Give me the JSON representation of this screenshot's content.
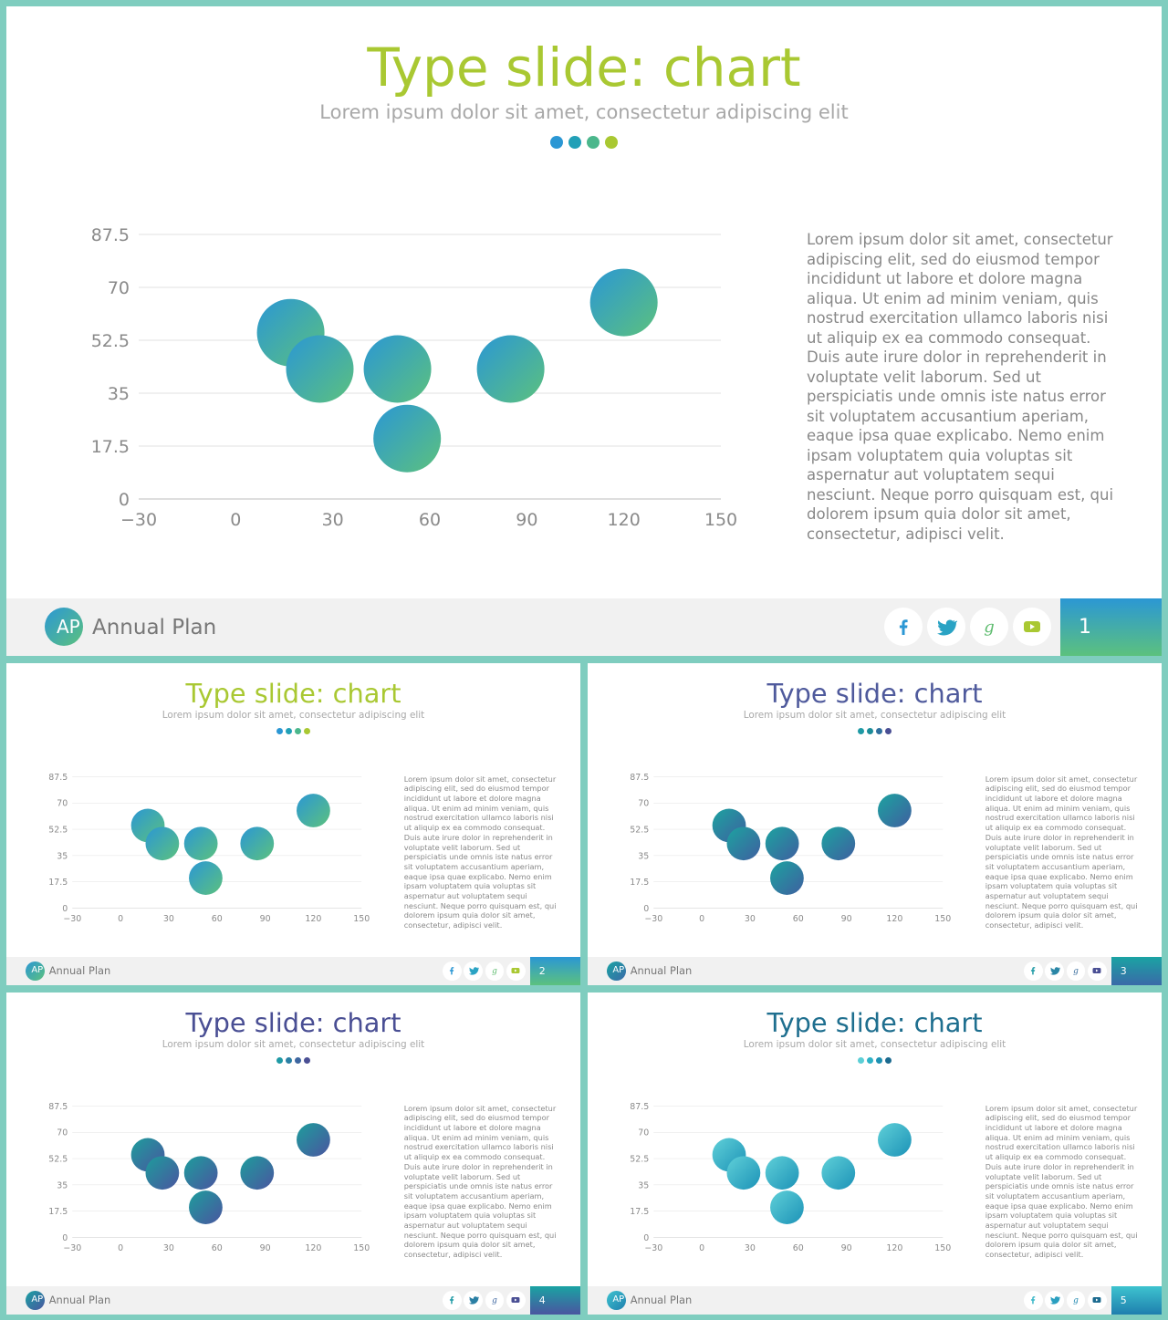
{
  "slides": [
    {
      "title": "Type slide: chart",
      "subtitle": "Lorem ipsum dolor sit amet, consectetur adipiscing elit",
      "body": "Lorem ipsum dolor sit amet, consectetur adipiscing elit, sed do eiusmod tempor incididunt ut labore et dolore magna aliqua. Ut enim ad minim veniam, quis nostrud exercitation ullamco laboris nisi ut aliquip ex ea commodo consequat. Duis aute irure dolor in reprehenderit in voluptate velit laborum. Sed ut perspiciatis unde omnis iste natus error sit voluptatem accusantium aperiam, eaque ipsa quae explicabo. Nemo enim ipsam voluptatem quia voluptas sit aspernatur aut voluptatem sequi nesciunt. Neque porro quisquam est, qui dolorem ipsum quia dolor sit amet, consectetur, adipisci velit.",
      "logo_initials": "AP",
      "brand": "Annual Plan",
      "page_number": "1",
      "title_color": "#a9c832",
      "dot_colors": [
        "#2b97d4",
        "#22a0b7",
        "#4bb78c",
        "#a9c832"
      ],
      "bubble_gradient": [
        "#2b97d4",
        "#5cc17e"
      ],
      "page_gradient": [
        "#2b97d4",
        "#5cc17e"
      ],
      "icon_colors": [
        "#2b97d4",
        "#2aa3c4",
        "#5ebc6f",
        "#a9c832"
      ],
      "social_icons": [
        "facebook-icon",
        "twitter-icon",
        "google-icon",
        "youtube-icon"
      ]
    },
    {
      "title": "Type slide: chart",
      "subtitle": "Lorem ipsum dolor sit amet, consectetur adipiscing elit",
      "body": "Lorem ipsum dolor sit amet, consectetur adipiscing elit, sed do eiusmod tempor incididunt ut labore et dolore magna aliqua. Ut enim ad minim veniam, quis nostrud exercitation ullamco laboris nisi ut aliquip ex ea commodo consequat. Duis aute irure dolor in reprehenderit in voluptate velit laborum. Sed ut perspiciatis unde omnis iste natus error sit voluptatem accusantium aperiam, eaque ipsa quae explicabo. Nemo enim ipsam voluptatem quia voluptas sit aspernatur aut voluptatem sequi nesciunt. Neque porro quisquam est, qui dolorem ipsum quia dolor sit amet, consectetur, adipisci velit.",
      "logo_initials": "AP",
      "brand": "Annual Plan",
      "page_number": "2",
      "title_color": "#a9c832",
      "dot_colors": [
        "#2b97d4",
        "#22a0b7",
        "#4bb78c",
        "#a9c832"
      ],
      "bubble_gradient": [
        "#2b97d4",
        "#5cc17e"
      ],
      "page_gradient": [
        "#2b97d4",
        "#5cc17e"
      ],
      "icon_colors": [
        "#2b97d4",
        "#2aa3c4",
        "#5ebc6f",
        "#a9c832"
      ],
      "social_icons": [
        "facebook-icon",
        "twitter-icon",
        "google-icon",
        "youtube-icon"
      ]
    },
    {
      "title": "Type slide: chart",
      "subtitle": "Lorem ipsum dolor sit amet, consectetur adipiscing elit",
      "body": "Lorem ipsum dolor sit amet, consectetur adipiscing elit, sed do eiusmod tempor incididunt ut labore et dolore magna aliqua. Ut enim ad minim veniam, quis nostrud exercitation ullamco laboris nisi ut aliquip ex ea commodo consequat. Duis aute irure dolor in reprehenderit in voluptate velit laborum. Sed ut perspiciatis unde omnis iste natus error sit voluptatem accusantium aperiam, eaque ipsa quae explicabo. Nemo enim ipsam voluptatem quia voluptas sit aspernatur aut voluptatem sequi nesciunt. Neque porro quisquam est, qui dolorem ipsum quia dolor sit amet, consectetur, adipisci velit.",
      "logo_initials": "AP",
      "brand": "Annual Plan",
      "page_number": "3",
      "title_color": "#4f5a9c",
      "dot_colors": [
        "#1f9aa5",
        "#1c8c99",
        "#2f6f9e",
        "#4a4f94"
      ],
      "bubble_gradient": [
        "#1ca3a0",
        "#3f5fa0"
      ],
      "page_gradient": [
        "#1aa3a3",
        "#3a6aa8"
      ],
      "icon_colors": [
        "#1f9aa5",
        "#2a86a6",
        "#3a6e9e",
        "#4a4f94"
      ],
      "social_icons": [
        "facebook-icon",
        "twitter-icon",
        "google-icon",
        "youtube-icon"
      ]
    },
    {
      "title": "Type slide: chart",
      "subtitle": "Lorem ipsum dolor sit amet, consectetur adipiscing elit",
      "body": "Lorem ipsum dolor sit amet, consectetur adipiscing elit, sed do eiusmod tempor incididunt ut labore et dolore magna aliqua. Ut enim ad minim veniam, quis nostrud exercitation ullamco laboris nisi ut aliquip ex ea commodo consequat. Duis aute irure dolor in reprehenderit in voluptate velit laborum. Sed ut perspiciatis unde omnis iste natus error sit voluptatem accusantium aperiam, eaque ipsa quae explicabo. Nemo enim ipsam voluptatem quia voluptas sit aspernatur aut voluptatem sequi nesciunt. Neque porro quisquam est, qui dolorem ipsum quia dolor sit amet, consectetur, adipisci velit.",
      "logo_initials": "AP",
      "brand": "Annual Plan",
      "page_number": "4",
      "title_color": "#4a4f94",
      "dot_colors": [
        "#1f9aa5",
        "#2a7fa4",
        "#3d66a0",
        "#4a4f94"
      ],
      "bubble_gradient": [
        "#1d9d9c",
        "#4a55a0"
      ],
      "page_gradient": [
        "#1aa3a3",
        "#4a55a0"
      ],
      "icon_colors": [
        "#1f9aa5",
        "#2a7fa4",
        "#3d66a0",
        "#4a4f94"
      ],
      "social_icons": [
        "facebook-icon",
        "twitter-icon",
        "google-icon",
        "youtube-icon"
      ]
    },
    {
      "title": "Type slide: chart",
      "subtitle": "Lorem ipsum dolor sit amet, consectetur adipiscing elit",
      "body": "Lorem ipsum dolor sit amet, consectetur adipiscing elit, sed do eiusmod tempor incididunt ut labore et dolore magna aliqua. Ut enim ad minim veniam, quis nostrud exercitation ullamco laboris nisi ut aliquip ex ea commodo consequat. Duis aute irure dolor in reprehenderit in voluptate velit laborum. Sed ut perspiciatis unde omnis iste natus error sit voluptatem accusantium aperiam, eaque ipsa quae explicabo. Nemo enim ipsam voluptatem quia voluptas sit aspernatur aut voluptatem sequi nesciunt. Neque porro quisquam est, qui dolorem ipsum quia dolor sit amet, consectetur, adipisci velit.",
      "logo_initials": "AP",
      "brand": "Annual Plan",
      "page_number": "5",
      "title_color": "#1f6f8f",
      "dot_colors": [
        "#5ccfd6",
        "#2eb2c6",
        "#1d90b2",
        "#1b6a8f"
      ],
      "bubble_gradient": [
        "#5fd0d8",
        "#1c92b7"
      ],
      "page_gradient": [
        "#3ec3cf",
        "#1f7fae"
      ],
      "icon_colors": [
        "#3ab7c8",
        "#2a9fc0",
        "#1f88b0",
        "#1b6a8f"
      ],
      "social_icons": [
        "facebook-icon",
        "twitter-icon",
        "google-icon",
        "youtube-icon"
      ]
    }
  ],
  "chart_data": {
    "type": "bubble",
    "x_ticks": [
      "−30",
      "0",
      "30",
      "60",
      "90",
      "120",
      "150"
    ],
    "y_ticks": [
      "0",
      "17.5",
      "35",
      "52.5",
      "70",
      "87.5"
    ],
    "xlim": [
      -30,
      150
    ],
    "ylim": [
      0,
      87.5
    ],
    "grid": true,
    "points": [
      {
        "x": 17,
        "y": 55
      },
      {
        "x": 26,
        "y": 43
      },
      {
        "x": 50,
        "y": 43
      },
      {
        "x": 53,
        "y": 20
      },
      {
        "x": 85,
        "y": 43
      },
      {
        "x": 120,
        "y": 65
      }
    ]
  }
}
